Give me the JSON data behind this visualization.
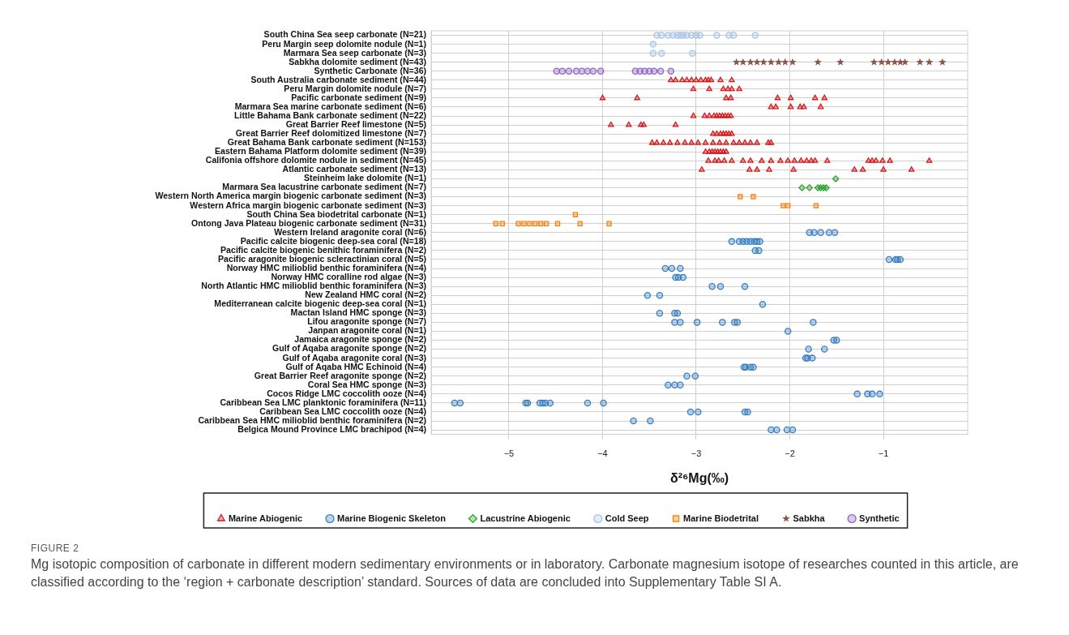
{
  "chart_data": {
    "type": "scatter",
    "orientation": "horizontal",
    "xlabel": "δ²⁶Mg(‰)",
    "xlim": [
      -5.83,
      -0.1
    ],
    "xticks": [
      {
        "value": -5,
        "label": "−5"
      },
      {
        "value": -4,
        "label": "−4"
      },
      {
        "value": -3,
        "label": "−3"
      },
      {
        "value": -2,
        "label": "−2"
      },
      {
        "value": -1,
        "label": "−1"
      }
    ],
    "grid": true,
    "legend": "bottom",
    "categories": [
      "South China Sea seep carbonate (N=21)",
      "Peru Margin seep dolomite nodule (N=1)",
      "Marmara Sea seep carbonate (N=3)",
      "Sabkha dolomite sediment (N=43)",
      "Synthetic Carbonate (N=36)",
      "South Australia carbonate sediment (N=44)",
      "Peru Margin dolomite nodule (N=7)",
      "Pacific carbonate sediment (N=9)",
      "Marmara Sea marine carbonate sediment (N=6)",
      "Little Bahama Bank carbonate sediment (N=22)",
      "Great Barrier Reef limestone (N=5)",
      "Great Barrier Reef dolomitized limestone (N=7)",
      "Great Bahama Bank carbonate sediment (N=153)",
      "Eastern Bahama Platform dolomite sediment (N=39)",
      "Califonia offshore dolomite nodule in sediment (N=45)",
      "Atlantic carbonate sediment (N=13)",
      "Steinheim lake dolomite (N=1)",
      "Marmara Sea lacustrine carbonate sediment (N=7)",
      "Western North America margin biogenic carbonate sediment (N=3)",
      "Western Africa margin biogenic carbonate sediment (N=3)",
      "South China Sea biodetrital carbonate (N=1)",
      "Ontong Java Plateau biogenic carbonate sediment (N=31)",
      "Western Ireland aragonite coral (N=6)",
      "Pacific calcite biogenic deep-sea coral (N=18)",
      "Pacific calcite biogenic benithic foraminifera (N=2)",
      "Pacific aragonite biogenic scleractinian coral (N=5)",
      "Norway HMC milioblid benthic foraminifera (N=4)",
      "Norway HMC coralline rod algae (N=3)",
      "North Atlantic HMC milioblid benthic foraminifera (N=3)",
      "New Zealand HMC coral (N=2)",
      "Mediterranean calcite biogenic deep-sea coral (N=1)",
      "Mactan Island HMC sponge (N=3)",
      "Lifou aragonite sponge (N=7)",
      "Janpan aragonite coral (N=1)",
      "Jamaica aragonite sponge (N=2)",
      "Gulf of Aqaba aragonite sponge (N=2)",
      "Gulf of Aqaba aragonite coral (N=3)",
      "Gulf of Aqaba HMC Echinoid (N=4)",
      "Great Barrier Reef aragonite sponge (N=2)",
      "Coral Sea HMC sponge (N=3)",
      "Cocos Ridge LMC coccolith ooze (N=4)",
      "Caribbean Sea LMC planktonic foraminifera (N=11)",
      "Caribbean Sea LMC coccolith ooze (N=4)",
      "Caribbean Sea HMC milioblid benthic foraminifera (N=2)",
      "Belgica Mound Province LMC brachipod (N=4)"
    ],
    "series": [
      {
        "name": "Marine Abiogenic",
        "color": "#d7191c",
        "marker": "triangle",
        "x": [
          "South Australia carbonate sediment (N=44)",
          "South Australia carbonate sediment (N=44)",
          "South Australia carbonate sediment (N=44)",
          "South Australia carbonate sediment (N=44)",
          "South Australia carbonate sediment (N=44)",
          "South Australia carbonate sediment (N=44)",
          "South Australia carbonate sediment (N=44)",
          "South Australia carbonate sediment (N=44)",
          "South Australia carbonate sediment (N=44)",
          "South Australia carbonate sediment (N=44)",
          "South Australia carbonate sediment (N=44)",
          "South Australia carbonate sediment (N=44)",
          "Peru Margin dolomite nodule (N=7)",
          "Peru Margin dolomite nodule (N=7)",
          "Peru Margin dolomite nodule (N=7)",
          "Peru Margin dolomite nodule (N=7)",
          "Peru Margin dolomite nodule (N=7)",
          "Peru Margin dolomite nodule (N=7)",
          "Pacific carbonate sediment (N=9)",
          "Pacific carbonate sediment (N=9)",
          "Pacific carbonate sediment (N=9)",
          "Pacific carbonate sediment (N=9)",
          "Pacific carbonate sediment (N=9)",
          "Pacific carbonate sediment (N=9)",
          "Pacific carbonate sediment (N=9)",
          "Pacific carbonate sediment (N=9)",
          "Marmara Sea marine carbonate sediment (N=6)",
          "Marmara Sea marine carbonate sediment (N=6)",
          "Marmara Sea marine carbonate sediment (N=6)",
          "Marmara Sea marine carbonate sediment (N=6)",
          "Marmara Sea marine carbonate sediment (N=6)",
          "Marmara Sea marine carbonate sediment (N=6)",
          "Little Bahama Bank carbonate sediment (N=22)",
          "Little Bahama Bank carbonate sediment (N=22)",
          "Little Bahama Bank carbonate sediment (N=22)",
          "Little Bahama Bank carbonate sediment (N=22)",
          "Little Bahama Bank carbonate sediment (N=22)",
          "Little Bahama Bank carbonate sediment (N=22)",
          "Little Bahama Bank carbonate sediment (N=22)",
          "Little Bahama Bank carbonate sediment (N=22)",
          "Little Bahama Bank carbonate sediment (N=22)",
          "Little Bahama Bank carbonate sediment (N=22)",
          "Great Barrier Reef limestone (N=5)",
          "Great Barrier Reef limestone (N=5)",
          "Great Barrier Reef limestone (N=5)",
          "Great Barrier Reef limestone (N=5)",
          "Great Barrier Reef limestone (N=5)",
          "Great Barrier Reef dolomitized limestone (N=7)",
          "Great Barrier Reef dolomitized limestone (N=7)",
          "Great Barrier Reef dolomitized limestone (N=7)",
          "Great Barrier Reef dolomitized limestone (N=7)",
          "Great Barrier Reef dolomitized limestone (N=7)",
          "Great Barrier Reef dolomitized limestone (N=7)",
          "Great Barrier Reef dolomitized limestone (N=7)",
          "Great Bahama Bank carbonate sediment (N=153)",
          "Great Bahama Bank carbonate sediment (N=153)",
          "Great Bahama Bank carbonate sediment (N=153)",
          "Great Bahama Bank carbonate sediment (N=153)",
          "Great Bahama Bank carbonate sediment (N=153)",
          "Great Bahama Bank carbonate sediment (N=153)",
          "Great Bahama Bank carbonate sediment (N=153)",
          "Great Bahama Bank carbonate sediment (N=153)",
          "Great Bahama Bank carbonate sediment (N=153)",
          "Great Bahama Bank carbonate sediment (N=153)",
          "Great Bahama Bank carbonate sediment (N=153)",
          "Great Bahama Bank carbonate sediment (N=153)",
          "Great Bahama Bank carbonate sediment (N=153)",
          "Great Bahama Bank carbonate sediment (N=153)",
          "Great Bahama Bank carbonate sediment (N=153)",
          "Great Bahama Bank carbonate sediment (N=153)",
          "Great Bahama Bank carbonate sediment (N=153)",
          "Great Bahama Bank carbonate sediment (N=153)",
          "Great Bahama Bank carbonate sediment (N=153)",
          "Eastern Bahama Platform dolomite sediment (N=39)",
          "Eastern Bahama Platform dolomite sediment (N=39)",
          "Eastern Bahama Platform dolomite sediment (N=39)",
          "Eastern Bahama Platform dolomite sediment (N=39)",
          "Eastern Bahama Platform dolomite sediment (N=39)",
          "Eastern Bahama Platform dolomite sediment (N=39)",
          "Eastern Bahama Platform dolomite sediment (N=39)",
          "Eastern Bahama Platform dolomite sediment (N=39)",
          "Califonia offshore dolomite nodule in sediment (N=45)",
          "Califonia offshore dolomite nodule in sediment (N=45)",
          "Califonia offshore dolomite nodule in sediment (N=45)",
          "Califonia offshore dolomite nodule in sediment (N=45)",
          "Califonia offshore dolomite nodule in sediment (N=45)",
          "Califonia offshore dolomite nodule in sediment (N=45)",
          "Califonia offshore dolomite nodule in sediment (N=45)",
          "Califonia offshore dolomite nodule in sediment (N=45)",
          "Califonia offshore dolomite nodule in sediment (N=45)",
          "Califonia offshore dolomite nodule in sediment (N=45)",
          "Califonia offshore dolomite nodule in sediment (N=45)",
          "Califonia offshore dolomite nodule in sediment (N=45)",
          "Califonia offshore dolomite nodule in sediment (N=45)",
          "Califonia offshore dolomite nodule in sediment (N=45)",
          "Califonia offshore dolomite nodule in sediment (N=45)",
          "Califonia offshore dolomite nodule in sediment (N=45)",
          "Califonia offshore dolomite nodule in sediment (N=45)",
          "Califonia offshore dolomite nodule in sediment (N=45)",
          "Califonia offshore dolomite nodule in sediment (N=45)",
          "Califonia offshore dolomite nodule in sediment (N=45)",
          "Califonia offshore dolomite nodule in sediment (N=45)",
          "Califonia offshore dolomite nodule in sediment (N=45)",
          "Califonia offshore dolomite nodule in sediment (N=45)",
          "Atlantic carbonate sediment (N=13)",
          "Atlantic carbonate sediment (N=13)",
          "Atlantic carbonate sediment (N=13)",
          "Atlantic carbonate sediment (N=13)",
          "Atlantic carbonate sediment (N=13)",
          "Atlantic carbonate sediment (N=13)",
          "Atlantic carbonate sediment (N=13)",
          "Atlantic carbonate sediment (N=13)",
          "Atlantic carbonate sediment (N=13)"
        ],
        "values": [
          -3.27,
          -3.22,
          -3.15,
          -3.1,
          -3.05,
          -3.0,
          -2.95,
          -2.9,
          -2.87,
          -2.84,
          -2.74,
          -2.62,
          -3.03,
          -2.86,
          -2.71,
          -2.66,
          -2.62,
          -2.54,
          -4.0,
          -3.63,
          -2.68,
          -2.63,
          -2.13,
          -1.99,
          -1.73,
          -1.63,
          -2.2,
          -2.15,
          -1.99,
          -1.89,
          -1.85,
          -1.67,
          -3.03,
          -2.91,
          -2.86,
          -2.81,
          -2.78,
          -2.75,
          -2.72,
          -2.69,
          -2.66,
          -2.63,
          -3.91,
          -3.72,
          -3.59,
          -3.56,
          -3.22,
          -2.82,
          -2.78,
          -2.74,
          -2.71,
          -2.68,
          -2.65,
          -2.62,
          -3.47,
          -3.42,
          -3.35,
          -3.28,
          -3.2,
          -3.12,
          -3.05,
          -2.98,
          -2.9,
          -2.82,
          -2.75,
          -2.68,
          -2.6,
          -2.54,
          -2.48,
          -2.42,
          -2.35,
          -2.23,
          -2.2,
          -2.9,
          -2.86,
          -2.83,
          -2.8,
          -2.77,
          -2.74,
          -2.71,
          -2.68,
          -2.87,
          -2.8,
          -2.76,
          -2.7,
          -2.62,
          -2.5,
          -2.42,
          -2.3,
          -2.2,
          -2.1,
          -2.02,
          -1.95,
          -1.88,
          -1.82,
          -1.77,
          -1.73,
          -1.6,
          -1.16,
          -1.12,
          -1.08,
          -1.01,
          -0.93,
          -0.51,
          -2.94,
          -2.43,
          -2.35,
          -2.22,
          -1.96,
          -1.31,
          -1.22,
          -1.0,
          -0.7
        ]
      },
      {
        "name": "Marine Biogenic Skeleton",
        "color": "#3a7fc1",
        "marker": "circle",
        "x": [
          "Western Ireland aragonite coral (N=6)",
          "Western Ireland aragonite coral (N=6)",
          "Western Ireland aragonite coral (N=6)",
          "Western Ireland aragonite coral (N=6)",
          "Western Ireland aragonite coral (N=6)",
          "Pacific calcite biogenic deep-sea coral (N=18)",
          "Pacific calcite biogenic deep-sea coral (N=18)",
          "Pacific calcite biogenic deep-sea coral (N=18)",
          "Pacific calcite biogenic deep-sea coral (N=18)",
          "Pacific calcite biogenic deep-sea coral (N=18)",
          "Pacific calcite biogenic deep-sea coral (N=18)",
          "Pacific calcite biogenic deep-sea coral (N=18)",
          "Pacific calcite biogenic deep-sea coral (N=18)",
          "Pacific calcite biogenic benithic foraminifera (N=2)",
          "Pacific calcite biogenic benithic foraminifera (N=2)",
          "Pacific aragonite biogenic scleractinian coral (N=5)",
          "Pacific aragonite biogenic scleractinian coral (N=5)",
          "Pacific aragonite biogenic scleractinian coral (N=5)",
          "Pacific aragonite biogenic scleractinian coral (N=5)",
          "Norway HMC milioblid benthic foraminifera (N=4)",
          "Norway HMC milioblid benthic foraminifera (N=4)",
          "Norway HMC milioblid benthic foraminifera (N=4)",
          "Norway HMC coralline rod algae (N=3)",
          "Norway HMC coralline rod algae (N=3)",
          "Norway HMC coralline rod algae (N=3)",
          "North Atlantic HMC milioblid benthic foraminifera (N=3)",
          "North Atlantic HMC milioblid benthic foraminifera (N=3)",
          "North Atlantic HMC milioblid benthic foraminifera (N=3)",
          "New Zealand HMC coral (N=2)",
          "New Zealand HMC coral (N=2)",
          "Mediterranean calcite biogenic deep-sea coral (N=1)",
          "Mactan Island HMC sponge (N=3)",
          "Mactan Island HMC sponge (N=3)",
          "Mactan Island HMC sponge (N=3)",
          "Lifou aragonite sponge (N=7)",
          "Lifou aragonite sponge (N=7)",
          "Lifou aragonite sponge (N=7)",
          "Lifou aragonite sponge (N=7)",
          "Lifou aragonite sponge (N=7)",
          "Lifou aragonite sponge (N=7)",
          "Lifou aragonite sponge (N=7)",
          "Janpan aragonite coral (N=1)",
          "Jamaica aragonite sponge (N=2)",
          "Jamaica aragonite sponge (N=2)",
          "Gulf of Aqaba aragonite sponge (N=2)",
          "Gulf of Aqaba aragonite sponge (N=2)",
          "Gulf of Aqaba aragonite coral (N=3)",
          "Gulf of Aqaba aragonite coral (N=3)",
          "Gulf of Aqaba aragonite coral (N=3)",
          "Gulf of Aqaba HMC Echinoid (N=4)",
          "Gulf of Aqaba HMC Echinoid (N=4)",
          "Gulf of Aqaba HMC Echinoid (N=4)",
          "Gulf of Aqaba HMC Echinoid (N=4)",
          "Great Barrier Reef aragonite sponge (N=2)",
          "Great Barrier Reef aragonite sponge (N=2)",
          "Coral Sea HMC sponge (N=3)",
          "Coral Sea HMC sponge (N=3)",
          "Coral Sea HMC sponge (N=3)",
          "Cocos Ridge LMC coccolith ooze (N=4)",
          "Cocos Ridge LMC coccolith ooze (N=4)",
          "Cocos Ridge LMC coccolith ooze (N=4)",
          "Cocos Ridge LMC coccolith ooze (N=4)",
          "Caribbean Sea LMC planktonic foraminifera (N=11)",
          "Caribbean Sea LMC planktonic foraminifera (N=11)",
          "Caribbean Sea LMC planktonic foraminifera (N=11)",
          "Caribbean Sea LMC planktonic foraminifera (N=11)",
          "Caribbean Sea LMC planktonic foraminifera (N=11)",
          "Caribbean Sea LMC planktonic foraminifera (N=11)",
          "Caribbean Sea LMC planktonic foraminifera (N=11)",
          "Caribbean Sea LMC planktonic foraminifera (N=11)",
          "Caribbean Sea LMC planktonic foraminifera (N=11)",
          "Caribbean Sea LMC planktonic foraminifera (N=11)",
          "Caribbean Sea LMC coccolith ooze (N=4)",
          "Caribbean Sea LMC coccolith ooze (N=4)",
          "Caribbean Sea LMC coccolith ooze (N=4)",
          "Caribbean Sea LMC coccolith ooze (N=4)",
          "Caribbean Sea HMC milioblid benthic foraminifera (N=2)",
          "Caribbean Sea HMC milioblid benthic foraminifera (N=2)",
          "Belgica Mound Province LMC brachipod (N=4)",
          "Belgica Mound Province LMC brachipod (N=4)",
          "Belgica Mound Province LMC brachipod (N=4)",
          "Belgica Mound Province LMC brachipod (N=4)"
        ],
        "values": [
          -1.79,
          -1.74,
          -1.67,
          -1.58,
          -1.52,
          -2.62,
          -2.54,
          -2.5,
          -2.46,
          -2.42,
          -2.38,
          -2.35,
          -2.32,
          -2.37,
          -2.33,
          -0.94,
          -0.87,
          -0.85,
          -0.82,
          -3.33,
          -3.26,
          -3.17,
          -3.22,
          -3.19,
          -3.14,
          -2.83,
          -2.74,
          -2.48,
          -3.52,
          -3.39,
          -2.29,
          -3.39,
          -3.23,
          -3.2,
          -3.23,
          -3.17,
          -2.99,
          -2.72,
          -2.59,
          -2.56,
          -1.75,
          -2.02,
          -1.53,
          -1.5,
          -1.8,
          -1.63,
          -1.83,
          -1.81,
          -1.76,
          -2.49,
          -2.47,
          -2.42,
          -2.39,
          -3.1,
          -3.01,
          -3.3,
          -3.23,
          -3.17,
          -1.28,
          -1.17,
          -1.12,
          -1.04,
          -5.58,
          -5.52,
          -4.82,
          -4.8,
          -4.67,
          -4.64,
          -4.61,
          -4.56,
          -4.16,
          -3.99,
          -3.06,
          -2.98,
          -2.48,
          -2.45,
          -3.67,
          -3.49,
          -2.2,
          -2.14,
          -2.03,
          -1.97
        ]
      },
      {
        "name": "Lacustrine Abiogenic",
        "color": "#2ca02c",
        "marker": "diamond",
        "x": [
          "Steinheim lake dolomite (N=1)",
          "Marmara Sea lacustrine carbonate sediment (N=7)",
          "Marmara Sea lacustrine carbonate sediment (N=7)",
          "Marmara Sea lacustrine carbonate sediment (N=7)",
          "Marmara Sea lacustrine carbonate sediment (N=7)",
          "Marmara Sea lacustrine carbonate sediment (N=7)",
          "Marmara Sea lacustrine carbonate sediment (N=7)"
        ],
        "values": [
          -1.51,
          -1.87,
          -1.79,
          -1.7,
          -1.67,
          -1.64,
          -1.61
        ]
      },
      {
        "name": "Cold Seep",
        "color": "#a9c4e8",
        "marker": "circle",
        "x": [
          "South China Sea seep carbonate (N=21)",
          "South China Sea seep carbonate (N=21)",
          "South China Sea seep carbonate (N=21)",
          "South China Sea seep carbonate (N=21)",
          "South China Sea seep carbonate (N=21)",
          "South China Sea seep carbonate (N=21)",
          "South China Sea seep carbonate (N=21)",
          "South China Sea seep carbonate (N=21)",
          "South China Sea seep carbonate (N=21)",
          "South China Sea seep carbonate (N=21)",
          "South China Sea seep carbonate (N=21)",
          "South China Sea seep carbonate (N=21)",
          "South China Sea seep carbonate (N=21)",
          "South China Sea seep carbonate (N=21)",
          "South China Sea seep carbonate (N=21)",
          "Peru Margin seep dolomite nodule (N=1)",
          "Marmara Sea seep carbonate (N=3)",
          "Marmara Sea seep carbonate (N=3)",
          "Marmara Sea seep carbonate (N=3)"
        ],
        "values": [
          -3.42,
          -3.37,
          -3.3,
          -3.25,
          -3.2,
          -3.17,
          -3.14,
          -3.1,
          -3.05,
          -3.0,
          -2.96,
          -2.78,
          -2.65,
          -2.6,
          -2.37,
          -3.46,
          -3.46,
          -3.37,
          -3.04
        ]
      },
      {
        "name": "Marine Biodetrital",
        "color": "#ff7f0e",
        "marker": "square",
        "x": [
          "Western North America margin biogenic carbonate sediment (N=3)",
          "Western North America margin biogenic carbonate sediment (N=3)",
          "Western Africa margin biogenic carbonate sediment (N=3)",
          "Western Africa margin biogenic carbonate sediment (N=3)",
          "Western Africa margin biogenic carbonate sediment (N=3)",
          "South China Sea biodetrital carbonate (N=1)",
          "Ontong Java Plateau biogenic carbonate sediment (N=31)",
          "Ontong Java Plateau biogenic carbonate sediment (N=31)",
          "Ontong Java Plateau biogenic carbonate sediment (N=31)",
          "Ontong Java Plateau biogenic carbonate sediment (N=31)",
          "Ontong Java Plateau biogenic carbonate sediment (N=31)",
          "Ontong Java Plateau biogenic carbonate sediment (N=31)",
          "Ontong Java Plateau biogenic carbonate sediment (N=31)",
          "Ontong Java Plateau biogenic carbonate sediment (N=31)",
          "Ontong Java Plateau biogenic carbonate sediment (N=31)",
          "Ontong Java Plateau biogenic carbonate sediment (N=31)",
          "Ontong Java Plateau biogenic carbonate sediment (N=31)"
        ],
        "values": [
          -2.53,
          -2.39,
          -2.07,
          -2.02,
          -1.72,
          -4.29,
          -5.14,
          -5.07,
          -4.9,
          -4.84,
          -4.78,
          -4.72,
          -4.66,
          -4.6,
          -4.48,
          -4.24,
          -3.93
        ]
      },
      {
        "name": "Sabkha",
        "color": "#8c564b",
        "marker": "star",
        "x": [
          "Sabkha dolomite sediment (N=43)",
          "Sabkha dolomite sediment (N=43)",
          "Sabkha dolomite sediment (N=43)",
          "Sabkha dolomite sediment (N=43)",
          "Sabkha dolomite sediment (N=43)",
          "Sabkha dolomite sediment (N=43)",
          "Sabkha dolomite sediment (N=43)",
          "Sabkha dolomite sediment (N=43)",
          "Sabkha dolomite sediment (N=43)",
          "Sabkha dolomite sediment (N=43)",
          "Sabkha dolomite sediment (N=43)",
          "Sabkha dolomite sediment (N=43)",
          "Sabkha dolomite sediment (N=43)",
          "Sabkha dolomite sediment (N=43)",
          "Sabkha dolomite sediment (N=43)",
          "Sabkha dolomite sediment (N=43)",
          "Sabkha dolomite sediment (N=43)",
          "Sabkha dolomite sediment (N=43)",
          "Sabkha dolomite sediment (N=43)",
          "Sabkha dolomite sediment (N=43)"
        ],
        "values": [
          -2.57,
          -2.5,
          -2.42,
          -2.35,
          -2.28,
          -2.2,
          -2.12,
          -2.05,
          -1.97,
          -1.7,
          -1.46,
          -1.1,
          -1.02,
          -0.95,
          -0.88,
          -0.82,
          -0.77,
          -0.61,
          -0.51,
          -0.37
        ]
      },
      {
        "name": "Synthetic",
        "color": "#8e63c4",
        "marker": "circle",
        "x": [
          "Synthetic Carbonate (N=36)",
          "Synthetic Carbonate (N=36)",
          "Synthetic Carbonate (N=36)",
          "Synthetic Carbonate (N=36)",
          "Synthetic Carbonate (N=36)",
          "Synthetic Carbonate (N=36)",
          "Synthetic Carbonate (N=36)",
          "Synthetic Carbonate (N=36)",
          "Synthetic Carbonate (N=36)",
          "Synthetic Carbonate (N=36)",
          "Synthetic Carbonate (N=36)",
          "Synthetic Carbonate (N=36)",
          "Synthetic Carbonate (N=36)",
          "Synthetic Carbonate (N=36)",
          "Synthetic Carbonate (N=36)"
        ],
        "values": [
          -4.49,
          -4.43,
          -4.36,
          -4.28,
          -4.22,
          -4.16,
          -4.1,
          -4.02,
          -3.65,
          -3.6,
          -3.55,
          -3.5,
          -3.45,
          -3.38,
          -3.27
        ]
      }
    ],
    "annotations": [
      "FIGURE 2",
      "Mg isotopic composition of carbonate in different modern sedimentary environments or in laboratory. Carbonate magnesium isotope of researches counted in this article, are classified according to the ‘region + carbonate description’ standard. Sources of data are concluded into Supplementary Table SI A."
    ]
  }
}
